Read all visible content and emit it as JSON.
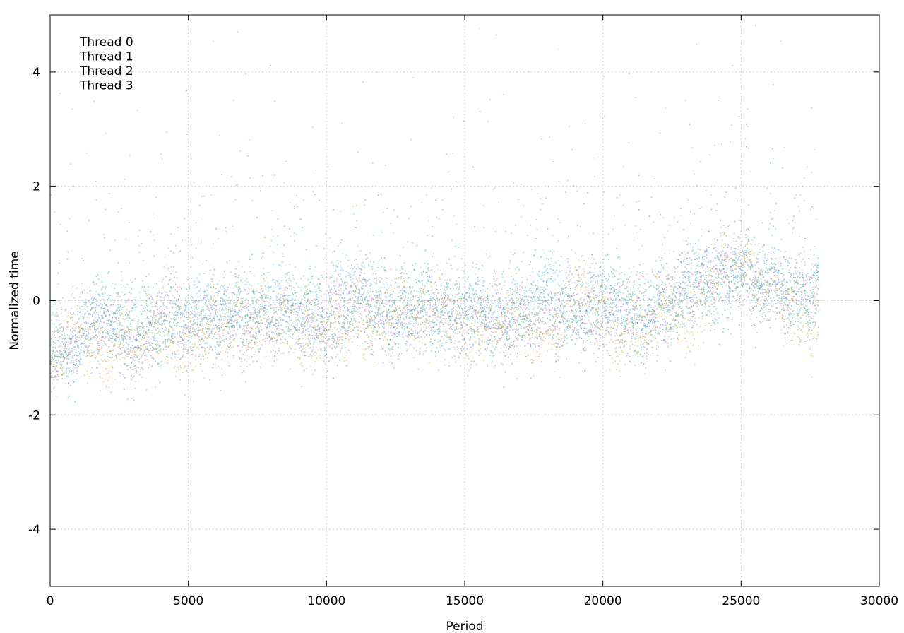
{
  "chart_data": {
    "type": "scatter",
    "title": "",
    "xlabel": "Period",
    "ylabel": "Normalized time",
    "xlim": [
      0,
      30000
    ],
    "ylim": [
      -5,
      5
    ],
    "x_ticks": [
      0,
      5000,
      10000,
      15000,
      20000,
      25000,
      30000
    ],
    "y_ticks": [
      -4,
      -2,
      0,
      2,
      4
    ],
    "x_tick_labels": [
      "0",
      "5000",
      "10000",
      "15000",
      "20000",
      "25000",
      "30000"
    ],
    "y_tick_labels": [
      "-4",
      "-2",
      "0",
      "2",
      "4"
    ],
    "grid": true,
    "legend_position": "top-left",
    "series": [
      {
        "name": "Thread 0",
        "color": "#9b6fd4",
        "trend": [
          [
            0,
            -0.9
          ],
          [
            1000,
            -0.8
          ],
          [
            2000,
            -0.6
          ],
          [
            3000,
            -0.55
          ],
          [
            4000,
            -0.6
          ],
          [
            5000,
            -0.6
          ],
          [
            6000,
            -0.4
          ],
          [
            7000,
            -0.4
          ],
          [
            8000,
            -0.4
          ],
          [
            9000,
            -0.35
          ],
          [
            10000,
            -0.3
          ],
          [
            11000,
            -0.3
          ],
          [
            12000,
            -0.2
          ],
          [
            13000,
            -0.25
          ],
          [
            14000,
            -0.3
          ],
          [
            15000,
            -0.3
          ],
          [
            16000,
            -0.35
          ],
          [
            17000,
            -0.45
          ],
          [
            18000,
            -0.3
          ],
          [
            19000,
            -0.1
          ],
          [
            20000,
            -0.2
          ],
          [
            21000,
            -0.3
          ],
          [
            22000,
            -0.2
          ],
          [
            23000,
            0.2
          ],
          [
            24000,
            0.4
          ],
          [
            25000,
            0.5
          ],
          [
            26000,
            0.3
          ],
          [
            27000,
            0.1
          ],
          [
            27800,
            0.2
          ]
        ]
      },
      {
        "name": "Thread 1",
        "color": "#2aa183",
        "trend": [
          [
            0,
            -0.8
          ],
          [
            1000,
            -0.7
          ],
          [
            2000,
            -0.5
          ],
          [
            3000,
            -0.45
          ],
          [
            4000,
            -0.5
          ],
          [
            5000,
            -0.45
          ],
          [
            6000,
            -0.35
          ],
          [
            7000,
            -0.3
          ],
          [
            8000,
            -0.3
          ],
          [
            9000,
            -0.3
          ],
          [
            10000,
            -0.25
          ],
          [
            11000,
            -0.2
          ],
          [
            12000,
            -0.15
          ],
          [
            13000,
            -0.2
          ],
          [
            14000,
            -0.2
          ],
          [
            15000,
            -0.25
          ],
          [
            16000,
            -0.3
          ],
          [
            17000,
            -0.35
          ],
          [
            18000,
            -0.2
          ],
          [
            19000,
            -0.15
          ],
          [
            20000,
            -0.2
          ],
          [
            21000,
            -0.25
          ],
          [
            22000,
            -0.2
          ],
          [
            23000,
            0.0
          ],
          [
            24000,
            0.2
          ],
          [
            25000,
            0.4
          ],
          [
            26000,
            0.2
          ],
          [
            27000,
            0.0
          ],
          [
            27800,
            0.1
          ]
        ]
      },
      {
        "name": "Thread 2",
        "color": "#4fb4e6",
        "trend": [
          [
            0,
            -0.7
          ],
          [
            1000,
            -0.5
          ],
          [
            2000,
            -0.3
          ],
          [
            3000,
            -0.3
          ],
          [
            4000,
            -0.35
          ],
          [
            5000,
            -0.3
          ],
          [
            6000,
            -0.2
          ],
          [
            7000,
            -0.1
          ],
          [
            8000,
            -0.1
          ],
          [
            9000,
            -0.1
          ],
          [
            10000,
            -0.1
          ],
          [
            11000,
            0.0
          ],
          [
            12000,
            0.1
          ],
          [
            13000,
            0.1
          ],
          [
            14000,
            0.0
          ],
          [
            15000,
            0.0
          ],
          [
            16000,
            -0.1
          ],
          [
            17000,
            -0.2
          ],
          [
            18000,
            0.0
          ],
          [
            19000,
            0.1
          ],
          [
            20000,
            0.0
          ],
          [
            21000,
            -0.1
          ],
          [
            22000,
            0.0
          ],
          [
            23000,
            0.3
          ],
          [
            24000,
            0.4
          ],
          [
            25000,
            0.5
          ],
          [
            26000,
            0.2
          ],
          [
            27000,
            0.1
          ],
          [
            27800,
            0.3
          ]
        ]
      },
      {
        "name": "Thread 3",
        "color": "#d6a640",
        "trend": [
          [
            0,
            -0.95
          ],
          [
            1000,
            -0.85
          ],
          [
            2000,
            -0.65
          ],
          [
            3000,
            -0.6
          ],
          [
            4000,
            -0.6
          ],
          [
            5000,
            -0.65
          ],
          [
            6000,
            -0.45
          ],
          [
            7000,
            -0.45
          ],
          [
            8000,
            -0.45
          ],
          [
            9000,
            -0.4
          ],
          [
            10000,
            -0.4
          ],
          [
            11000,
            -0.35
          ],
          [
            12000,
            -0.3
          ],
          [
            13000,
            -0.3
          ],
          [
            14000,
            -0.35
          ],
          [
            15000,
            -0.35
          ],
          [
            16000,
            -0.4
          ],
          [
            17000,
            -0.55
          ],
          [
            18000,
            -0.35
          ],
          [
            19000,
            -0.2
          ],
          [
            20000,
            -0.3
          ],
          [
            21000,
            -0.4
          ],
          [
            22000,
            -0.3
          ],
          [
            23000,
            -0.3
          ],
          [
            24000,
            0.3
          ],
          [
            25000,
            0.7
          ],
          [
            26000,
            0.1
          ],
          [
            27000,
            -0.3
          ],
          [
            27800,
            -0.2
          ]
        ]
      }
    ]
  }
}
